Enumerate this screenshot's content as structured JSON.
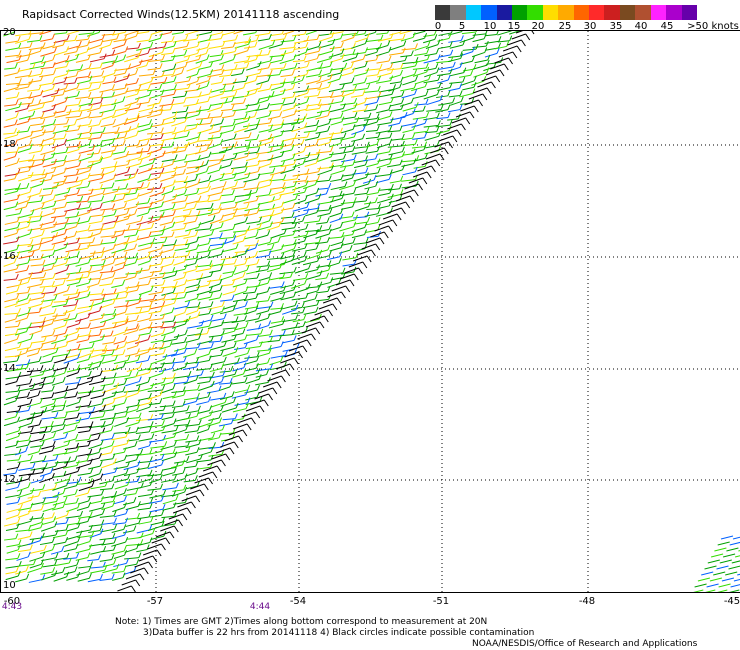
{
  "title": "Rapidsact Corrected Winds(12.5KM) 20141118 ascending",
  "colorbar": {
    "segments": [
      "#3a3a3a",
      "#7f7f7f",
      "#00c8ff",
      "#0060ff",
      "#1a1aa0",
      "#00a000",
      "#33dd00",
      "#ffdd00",
      "#ffaa00",
      "#ff6600",
      "#ff2a2a",
      "#cc1f1f",
      "#7a4a20",
      "#b05030",
      "#ff22ff",
      "#aa00cc",
      "#6600aa"
    ],
    "labels": [
      "0",
      "5",
      "10",
      "15",
      "20",
      "25",
      "30",
      "35",
      "40",
      "45",
      ">50 knots"
    ]
  },
  "map": {
    "lat_labels": [
      "20",
      "18",
      "16",
      "14",
      "12",
      "10"
    ],
    "lon_labels": [
      "-60",
      "-57",
      "-54",
      "-51",
      "-48",
      "-45"
    ],
    "time_labels": [
      "4:43",
      "4:44"
    ]
  },
  "notes": {
    "line1": "Note: 1) Times are GMT 2)Times along bottom correspond to measurement at 20N",
    "line2": "3)Data buffer is 22 hrs from 20141118 4) Black circles indicate possible contamination",
    "line3": "NOAA/NESDIS/Office of Research and Applications"
  }
}
